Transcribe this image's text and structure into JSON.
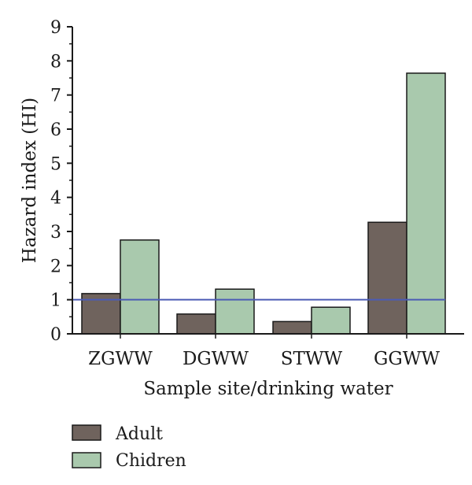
{
  "chart_data": {
    "type": "bar",
    "categories": [
      "ZGWW",
      "DGWW",
      "STWW",
      "GGWW"
    ],
    "series": [
      {
        "name": "Adult",
        "values": [
          1.18,
          0.58,
          0.36,
          3.27
        ],
        "color": "#6f635d"
      },
      {
        "name": "Chidren",
        "values": [
          2.75,
          1.31,
          0.78,
          7.64
        ],
        "color": "#a9c9ad"
      }
    ],
    "xlabel": "Sample site/drinking water",
    "ylabel": "Hazard index (HI)",
    "ylim": [
      0,
      9
    ],
    "yticks": [
      "0",
      "1",
      "2",
      "3",
      "4",
      "5",
      "6",
      "7",
      "8",
      "9"
    ],
    "reference_line": {
      "y": 1,
      "color": "#4b5bb5"
    },
    "grid": false,
    "legend_position": "bottom-left"
  }
}
